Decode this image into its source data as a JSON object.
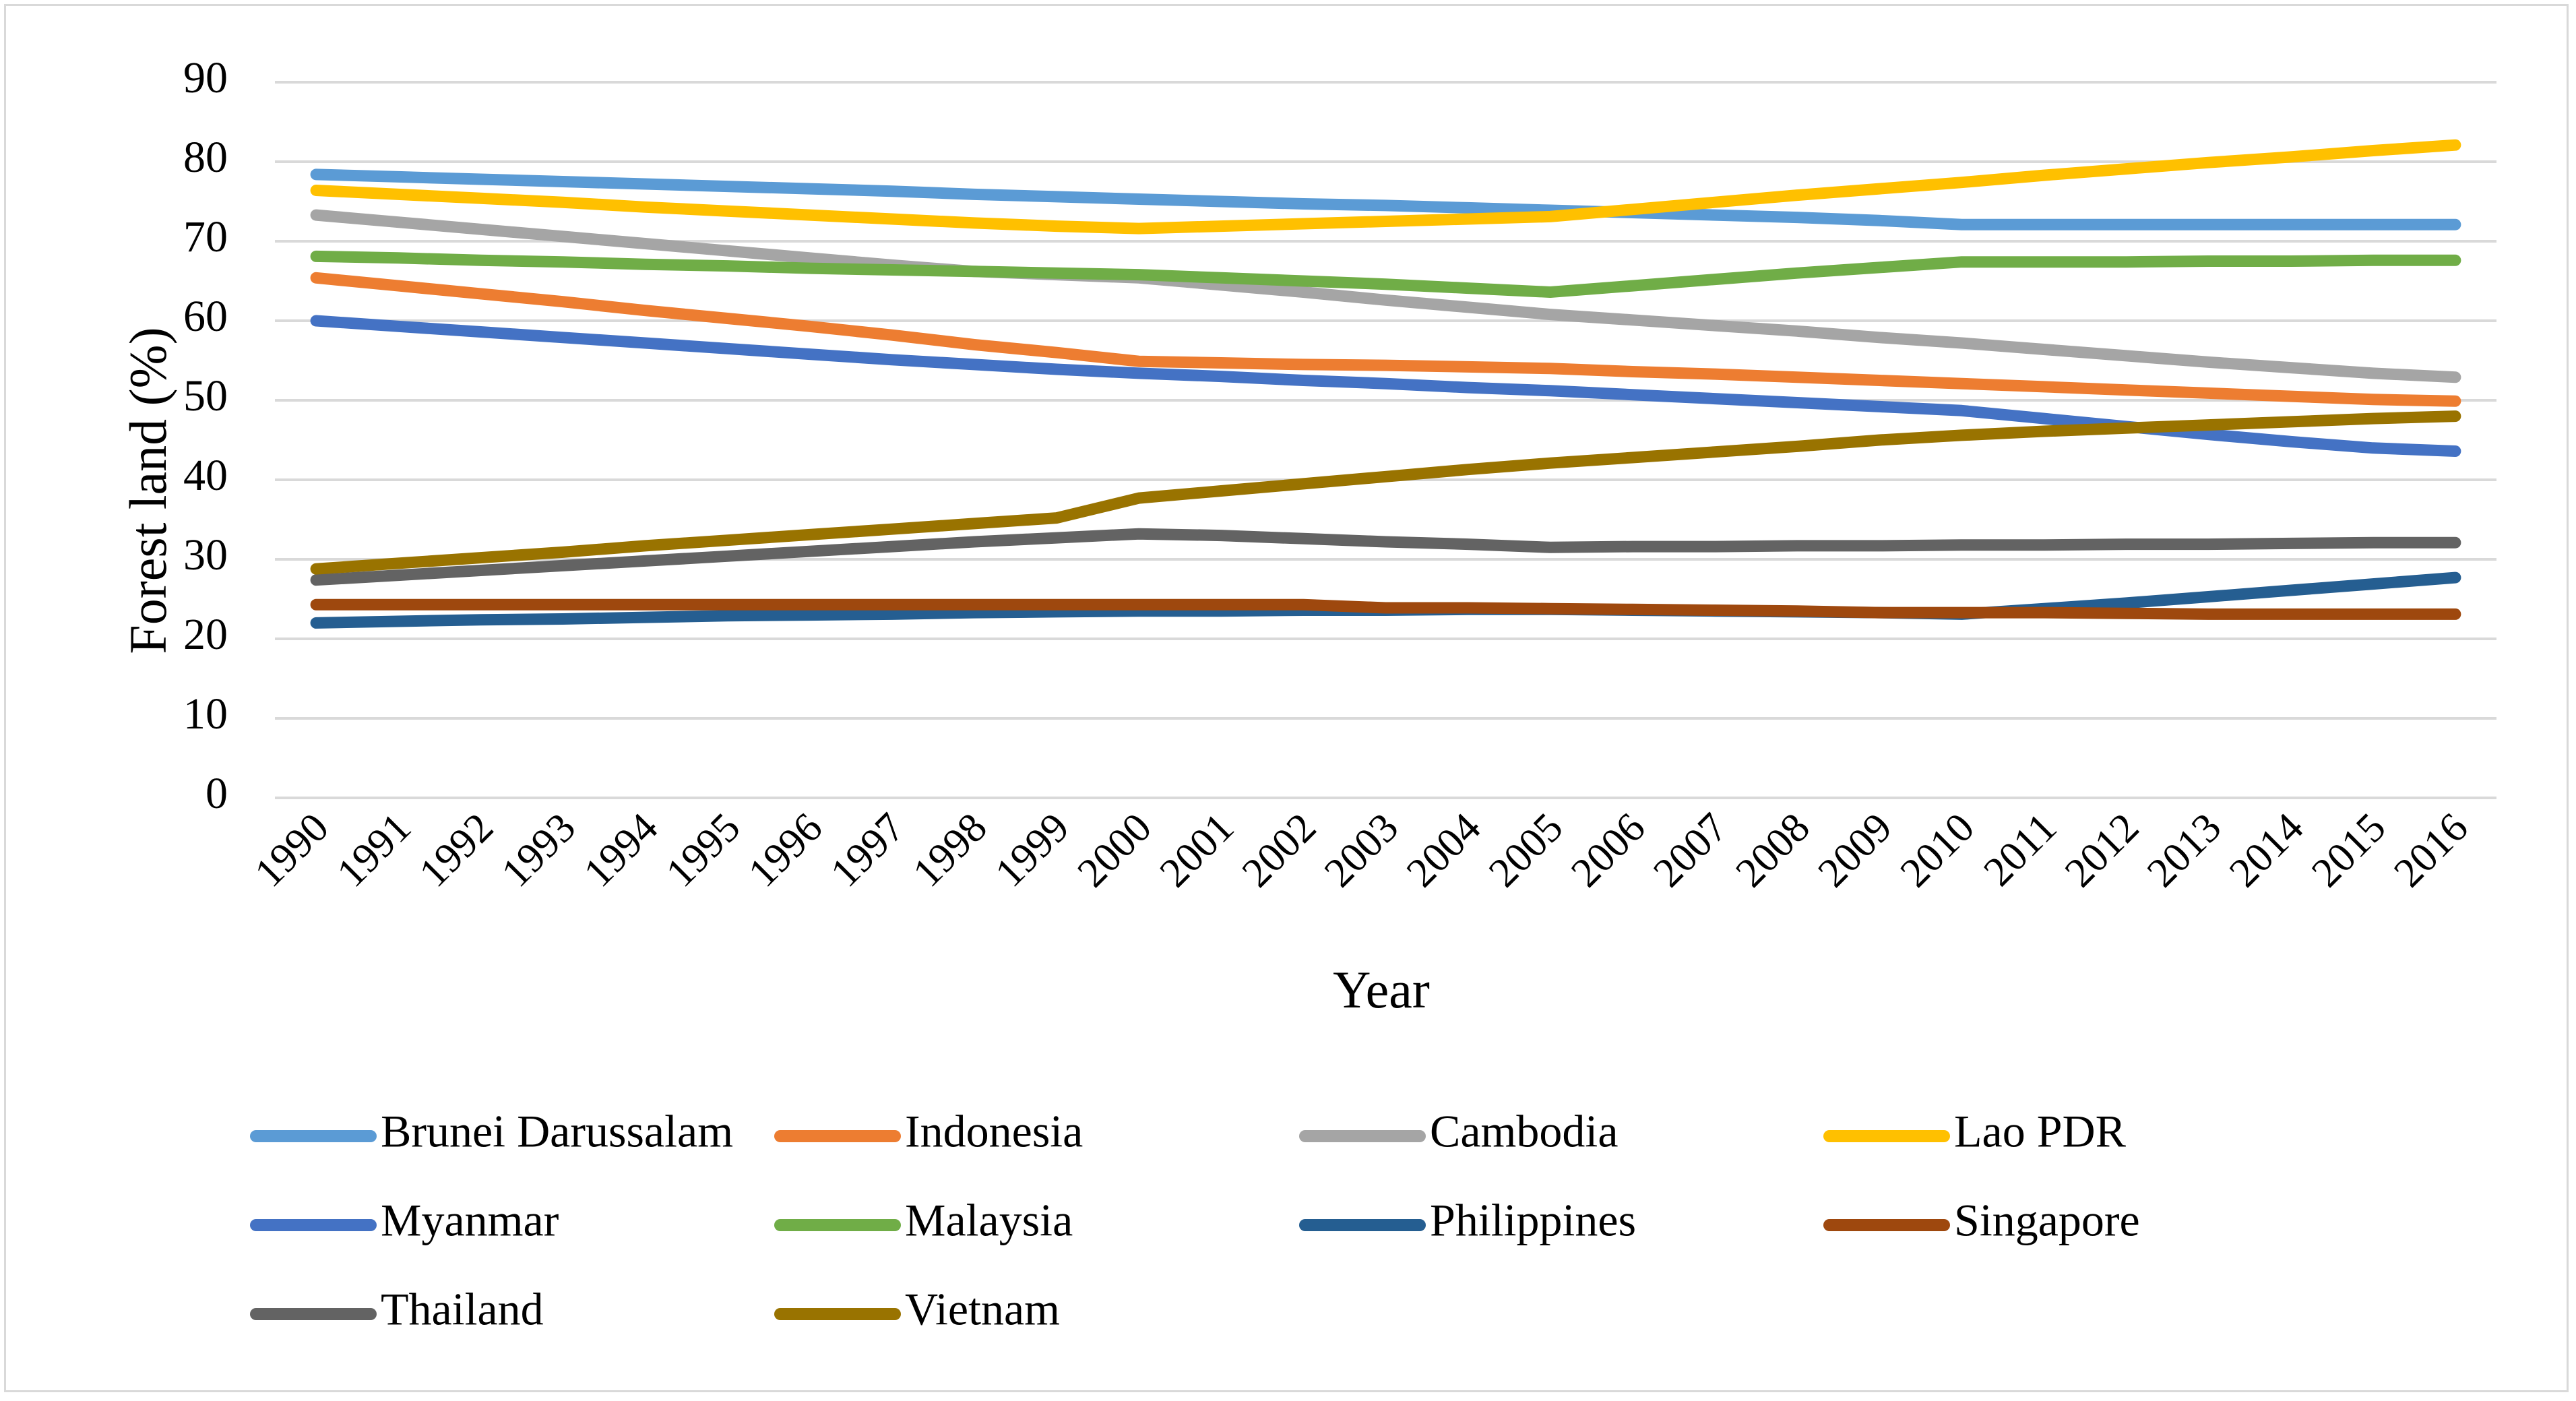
{
  "chart_data": {
    "type": "line",
    "title": "",
    "xlabel": "Year",
    "ylabel": "Forest land (%)",
    "ylim": [
      0,
      90
    ],
    "yticks": [
      "0",
      "10",
      "20",
      "30",
      "40",
      "50",
      "60",
      "70",
      "80",
      "90"
    ],
    "grid": true,
    "legend_position": "bottom",
    "x": [
      "1990",
      "1991",
      "1992",
      "1993",
      "1994",
      "1995",
      "1996",
      "1997",
      "1998",
      "1999",
      "2000",
      "2001",
      "2002",
      "2003",
      "2004",
      "2005",
      "2006",
      "2007",
      "2008",
      "2009",
      "2010",
      "2011",
      "2012",
      "2013",
      "2014",
      "2015",
      "2016"
    ],
    "series": [
      {
        "name": "Brunei Darussalam",
        "color": "#5B9BD5",
        "values": [
          78.4,
          78.1,
          77.8,
          77.5,
          77.2,
          76.9,
          76.6,
          76.3,
          75.9,
          75.6,
          75.3,
          75.0,
          74.7,
          74.5,
          74.2,
          73.9,
          73.6,
          73.3,
          73.0,
          72.6,
          72.1,
          72.1,
          72.1,
          72.1,
          72.1,
          72.1,
          72.1
        ]
      },
      {
        "name": "Indonesia",
        "color": "#ED7D31",
        "values": [
          65.4,
          64.4,
          63.4,
          62.4,
          61.3,
          60.3,
          59.3,
          58.2,
          57.0,
          56.0,
          54.9,
          54.7,
          54.5,
          54.4,
          54.2,
          54.0,
          53.6,
          53.3,
          52.9,
          52.5,
          52.1,
          51.7,
          51.3,
          50.9,
          50.5,
          50.1,
          49.9
        ]
      },
      {
        "name": "Cambodia",
        "color": "#A5A5A5",
        "values": [
          73.3,
          72.4,
          71.5,
          70.6,
          69.7,
          68.8,
          67.9,
          67.0,
          66.2,
          65.8,
          65.4,
          64.5,
          63.6,
          62.6,
          61.7,
          60.8,
          60.1,
          59.4,
          58.7,
          57.9,
          57.2,
          56.4,
          55.6,
          54.8,
          54.1,
          53.4,
          52.9
        ]
      },
      {
        "name": "Lao PDR",
        "color": "#FFC000",
        "values": [
          76.4,
          75.9,
          75.4,
          74.9,
          74.3,
          73.8,
          73.3,
          72.8,
          72.3,
          71.9,
          71.6,
          71.9,
          72.2,
          72.5,
          72.8,
          73.1,
          74.0,
          74.9,
          75.8,
          76.6,
          77.4,
          78.3,
          79.1,
          79.9,
          80.6,
          81.4,
          82.1
        ]
      },
      {
        "name": "Myanmar",
        "color": "#4472C4",
        "values": [
          60.0,
          59.3,
          58.6,
          57.9,
          57.2,
          56.5,
          55.8,
          55.1,
          54.5,
          53.9,
          53.4,
          53.0,
          52.5,
          52.1,
          51.6,
          51.2,
          50.7,
          50.2,
          49.7,
          49.2,
          48.7,
          47.7,
          46.7,
          45.7,
          44.8,
          44.0,
          43.6
        ]
      },
      {
        "name": "Malaysia",
        "color": "#70AD47",
        "values": [
          68.1,
          67.9,
          67.6,
          67.4,
          67.1,
          66.9,
          66.6,
          66.4,
          66.2,
          66.0,
          65.8,
          65.4,
          65.0,
          64.6,
          64.1,
          63.6,
          64.4,
          65.2,
          66.0,
          66.7,
          67.4,
          67.4,
          67.4,
          67.5,
          67.5,
          67.6,
          67.6
        ]
      },
      {
        "name": "Philippines",
        "color": "#255E91",
        "values": [
          22.0,
          22.2,
          22.4,
          22.5,
          22.7,
          22.9,
          23.0,
          23.1,
          23.3,
          23.4,
          23.5,
          23.5,
          23.6,
          23.6,
          23.7,
          23.7,
          23.6,
          23.5,
          23.4,
          23.3,
          23.1,
          23.8,
          24.5,
          25.3,
          26.1,
          26.9,
          27.7
        ]
      },
      {
        "name": "Singapore",
        "color": "#9E480E",
        "values": [
          24.3,
          24.3,
          24.3,
          24.3,
          24.3,
          24.3,
          24.3,
          24.3,
          24.3,
          24.3,
          24.3,
          24.3,
          24.3,
          23.9,
          23.9,
          23.8,
          23.7,
          23.6,
          23.5,
          23.3,
          23.3,
          23.3,
          23.2,
          23.1,
          23.1,
          23.1,
          23.1
        ]
      },
      {
        "name": "Thailand",
        "color": "#636363",
        "values": [
          27.4,
          28.0,
          28.6,
          29.2,
          29.8,
          30.4,
          31.0,
          31.6,
          32.2,
          32.7,
          33.2,
          33.0,
          32.6,
          32.2,
          31.9,
          31.5,
          31.6,
          31.6,
          31.7,
          31.7,
          31.8,
          31.8,
          31.9,
          31.9,
          32.0,
          32.1,
          32.1
        ]
      },
      {
        "name": "Vietnam",
        "color": "#997300",
        "values": [
          28.8,
          29.5,
          30.2,
          30.9,
          31.7,
          32.4,
          33.1,
          33.8,
          34.5,
          35.2,
          37.7,
          38.6,
          39.5,
          40.4,
          41.3,
          42.1,
          42.8,
          43.5,
          44.2,
          45.0,
          45.6,
          46.1,
          46.5,
          46.9,
          47.3,
          47.7,
          48.0
        ]
      }
    ]
  }
}
